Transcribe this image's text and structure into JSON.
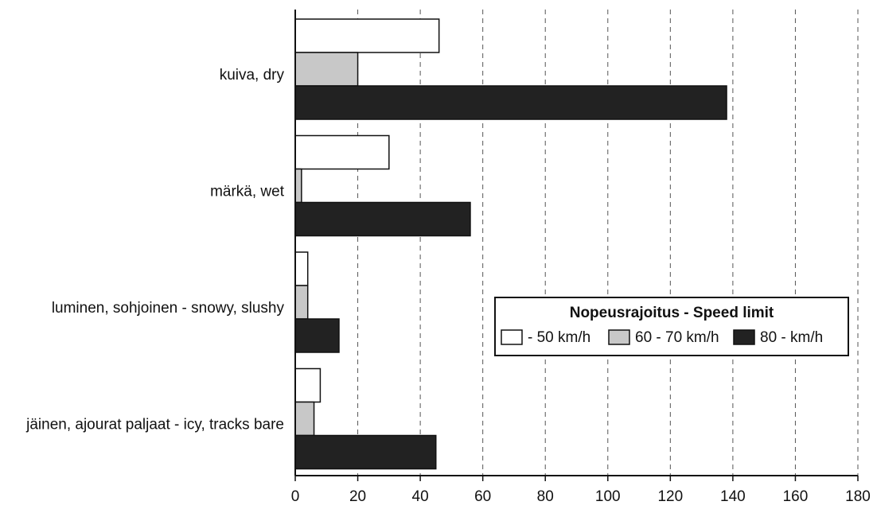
{
  "chart_data": {
    "type": "bar",
    "orientation": "horizontal",
    "categories": [
      "kuiva, dry",
      "märkä, wet",
      "luminen, sohjoinen - snowy, slushy",
      "jäinen, ajourat paljaat - icy, tracks bare"
    ],
    "legend_title": "Nopeusrajoitus - Speed limit",
    "series": [
      {
        "name": "- 50 km/h",
        "color": "#ffffff",
        "values": [
          46,
          30,
          4,
          8
        ]
      },
      {
        "name": "60 - 70 km/h",
        "color": "#c8c8c8",
        "values": [
          20,
          2,
          4,
          6
        ]
      },
      {
        "name": "80 - km/h",
        "color": "#222222",
        "values": [
          138,
          56,
          14,
          45
        ]
      }
    ],
    "xlim": [
      0,
      180
    ],
    "xticks": [
      0,
      20,
      40,
      60,
      80,
      100,
      120,
      140,
      160,
      180
    ],
    "grid": true
  }
}
